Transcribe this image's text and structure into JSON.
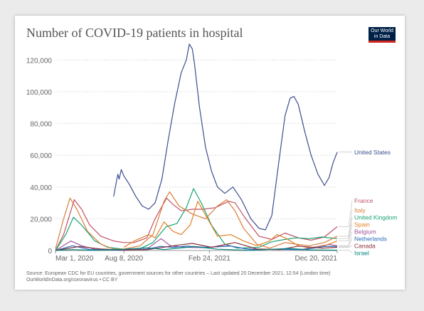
{
  "header": {
    "title": "Number of COVID-19 patients in hospital",
    "logo_line1": "Our World",
    "logo_line2": "in Data"
  },
  "footer": {
    "source": "Source: European CDC for EU countries, government sources for other countries – Last updated 20 December 2021, 12:54 (London time)",
    "credit": "OurWorldInData.org/coronavirus • CC BY"
  },
  "colors": {
    "logo_bg": "#002147",
    "logo_accent": "#ce261e"
  },
  "chart_data": {
    "type": "line",
    "title": "Number of COVID-19 patients in hospital",
    "xlabel": "",
    "ylabel": "",
    "x_axis_type": "date",
    "xlim": [
      "2020-03-01",
      "2021-12-20"
    ],
    "x_ticks": [
      "2020-03-01",
      "2020-08-08",
      "2021-02-24",
      "2021-12-20"
    ],
    "x_tick_labels": [
      "Mar 1, 2020",
      "Aug 8, 2020",
      "Feb 24, 2021",
      "Dec 20, 2021"
    ],
    "ylim": [
      0,
      130000
    ],
    "y_ticks": [
      0,
      20000,
      40000,
      60000,
      80000,
      100000,
      120000
    ],
    "y_tick_labels": [
      "0",
      "20,000",
      "40,000",
      "60,000",
      "80,000",
      "100,000",
      "120,000"
    ],
    "grid": "horizontal dotted",
    "legend": "right, labels at line ends",
    "series": [
      {
        "name": "United States",
        "color": "#3c4e8e",
        "points": [
          [
            "2020-07-15",
            34000
          ],
          [
            "2020-07-22",
            44000
          ],
          [
            "2020-07-25",
            48000
          ],
          [
            "2020-07-28",
            45000
          ],
          [
            "2020-08-02",
            51000
          ],
          [
            "2020-08-08",
            47000
          ],
          [
            "2020-08-20",
            42000
          ],
          [
            "2020-09-05",
            34000
          ],
          [
            "2020-09-20",
            28000
          ],
          [
            "2020-10-05",
            26000
          ],
          [
            "2020-10-20",
            30000
          ],
          [
            "2020-11-05",
            45000
          ],
          [
            "2020-11-20",
            70000
          ],
          [
            "2020-12-05",
            93000
          ],
          [
            "2020-12-20",
            112000
          ],
          [
            "2021-01-01",
            120000
          ],
          [
            "2021-01-08",
            130000
          ],
          [
            "2021-01-15",
            127000
          ],
          [
            "2021-01-20",
            118000
          ],
          [
            "2021-02-01",
            90000
          ],
          [
            "2021-02-15",
            65000
          ],
          [
            "2021-03-01",
            50000
          ],
          [
            "2021-03-15",
            40000
          ],
          [
            "2021-04-01",
            36000
          ],
          [
            "2021-04-20",
            40000
          ],
          [
            "2021-05-10",
            32000
          ],
          [
            "2021-06-01",
            20000
          ],
          [
            "2021-06-20",
            14000
          ],
          [
            "2021-07-05",
            13000
          ],
          [
            "2021-07-20",
            22000
          ],
          [
            "2021-08-05",
            55000
          ],
          [
            "2021-08-20",
            85000
          ],
          [
            "2021-09-01",
            96000
          ],
          [
            "2021-09-10",
            97000
          ],
          [
            "2021-09-20",
            92000
          ],
          [
            "2021-10-05",
            75000
          ],
          [
            "2021-10-20",
            60000
          ],
          [
            "2021-11-05",
            48000
          ],
          [
            "2021-11-20",
            41000
          ],
          [
            "2021-12-01",
            46000
          ],
          [
            "2021-12-10",
            55000
          ],
          [
            "2021-12-20",
            62000
          ]
        ]
      },
      {
        "name": "France",
        "color": "#c15065",
        "points": [
          [
            "2020-03-01",
            0
          ],
          [
            "2020-03-20",
            10000
          ],
          [
            "2020-04-14",
            32000
          ],
          [
            "2020-05-01",
            26000
          ],
          [
            "2020-05-20",
            16000
          ],
          [
            "2020-06-15",
            9000
          ],
          [
            "2020-07-15",
            6000
          ],
          [
            "2020-08-08",
            5000
          ],
          [
            "2020-09-01",
            5000
          ],
          [
            "2020-10-01",
            8000
          ],
          [
            "2020-10-20",
            20000
          ],
          [
            "2020-11-16",
            33000
          ],
          [
            "2020-12-01",
            29000
          ],
          [
            "2020-12-20",
            25000
          ],
          [
            "2021-01-15",
            26000
          ],
          [
            "2021-02-10",
            26000
          ],
          [
            "2021-03-10",
            27000
          ],
          [
            "2021-04-10",
            31000
          ],
          [
            "2021-04-25",
            30000
          ],
          [
            "2021-05-20",
            20000
          ],
          [
            "2021-06-20",
            9000
          ],
          [
            "2021-07-20",
            7000
          ],
          [
            "2021-08-20",
            11000
          ],
          [
            "2021-09-20",
            8000
          ],
          [
            "2021-10-20",
            6500
          ],
          [
            "2021-11-20",
            8500
          ],
          [
            "2021-12-20",
            15000
          ]
        ]
      },
      {
        "name": "United Kingdom",
        "color": "#18a473",
        "points": [
          [
            "2020-03-01",
            0
          ],
          [
            "2020-03-25",
            10000
          ],
          [
            "2020-04-12",
            21000
          ],
          [
            "2020-05-01",
            16000
          ],
          [
            "2020-06-01",
            6000
          ],
          [
            "2020-07-01",
            2000
          ],
          [
            "2020-08-08",
            800
          ],
          [
            "2020-09-15",
            1200
          ],
          [
            "2020-10-15",
            5000
          ],
          [
            "2020-11-15",
            15000
          ],
          [
            "2020-12-10",
            17000
          ],
          [
            "2021-01-01",
            27000
          ],
          [
            "2021-01-18",
            39000
          ],
          [
            "2021-02-05",
            30000
          ],
          [
            "2021-03-01",
            16000
          ],
          [
            "2021-04-01",
            4000
          ],
          [
            "2021-05-01",
            1500
          ],
          [
            "2021-06-20",
            2000
          ],
          [
            "2021-07-20",
            5500
          ],
          [
            "2021-08-20",
            7000
          ],
          [
            "2021-09-15",
            8000
          ],
          [
            "2021-10-15",
            7500
          ],
          [
            "2021-11-15",
            8500
          ],
          [
            "2021-12-20",
            7500
          ]
        ]
      },
      {
        "name": "Italy",
        "color": "#d97d3a",
        "points": [
          [
            "2020-03-01",
            1000
          ],
          [
            "2020-03-20",
            20000
          ],
          [
            "2020-04-04",
            33000
          ],
          [
            "2020-04-20",
            26000
          ],
          [
            "2020-05-15",
            12000
          ],
          [
            "2020-06-15",
            4000
          ],
          [
            "2020-07-15",
            900
          ],
          [
            "2020-08-08",
            900
          ],
          [
            "2020-09-15",
            3000
          ],
          [
            "2020-10-15",
            10000
          ],
          [
            "2020-11-10",
            31000
          ],
          [
            "2020-11-23",
            37000
          ],
          [
            "2020-12-15",
            28000
          ],
          [
            "2021-01-15",
            23000
          ],
          [
            "2021-02-15",
            20000
          ],
          [
            "2021-03-15",
            28000
          ],
          [
            "2021-04-05",
            32000
          ],
          [
            "2021-04-25",
            25000
          ],
          [
            "2021-05-15",
            14000
          ],
          [
            "2021-06-15",
            4000
          ],
          [
            "2021-07-15",
            1500
          ],
          [
            "2021-08-20",
            5000
          ],
          [
            "2021-09-15",
            4000
          ],
          [
            "2021-10-15",
            3000
          ],
          [
            "2021-11-20",
            5000
          ],
          [
            "2021-12-20",
            9000
          ]
        ]
      },
      {
        "name": "Belgium",
        "color": "#a2559c",
        "points": [
          [
            "2020-03-01",
            0
          ],
          [
            "2020-04-06",
            6000
          ],
          [
            "2020-05-01",
            3000
          ],
          [
            "2020-06-01",
            800
          ],
          [
            "2020-08-08",
            400
          ],
          [
            "2020-10-01",
            1000
          ],
          [
            "2020-11-03",
            7500
          ],
          [
            "2020-11-25",
            3000
          ],
          [
            "2021-01-01",
            2000
          ],
          [
            "2021-02-15",
            1800
          ],
          [
            "2021-04-12",
            3000
          ],
          [
            "2021-05-20",
            1000
          ],
          [
            "2021-08-01",
            600
          ],
          [
            "2021-10-01",
            800
          ],
          [
            "2021-12-01",
            3800
          ],
          [
            "2021-12-20",
            3000
          ]
        ]
      },
      {
        "name": "Spain",
        "color": "#e18029",
        "points": [
          [
            "2020-08-08",
            2000
          ],
          [
            "2020-09-01",
            6000
          ],
          [
            "2020-10-05",
            10000
          ],
          [
            "2020-10-20",
            8000
          ],
          [
            "2020-11-10",
            18000
          ],
          [
            "2020-12-01",
            12000
          ],
          [
            "2020-12-20",
            10000
          ],
          [
            "2021-01-10",
            16000
          ],
          [
            "2021-01-28",
            31000
          ],
          [
            "2021-02-20",
            20000
          ],
          [
            "2021-03-15",
            9000
          ],
          [
            "2021-04-15",
            10000
          ],
          [
            "2021-05-15",
            6000
          ],
          [
            "2021-06-15",
            3000
          ],
          [
            "2021-07-15",
            6000
          ],
          [
            "2021-08-01",
            10000
          ],
          [
            "2021-08-20",
            8000
          ],
          [
            "2021-09-20",
            3000
          ],
          [
            "2021-10-20",
            1500
          ],
          [
            "2021-11-20",
            3000
          ],
          [
            "2021-12-20",
            6000
          ]
        ]
      },
      {
        "name": "Netherlands",
        "color": "#286bbb",
        "points": [
          [
            "2020-03-01",
            0
          ],
          [
            "2020-04-10",
            3000
          ],
          [
            "2020-05-20",
            600
          ],
          [
            "2020-08-08",
            200
          ],
          [
            "2020-10-01",
            800
          ],
          [
            "2020-11-01",
            2600
          ],
          [
            "2020-12-01",
            2000
          ],
          [
            "2021-01-01",
            2800
          ],
          [
            "2021-02-15",
            2000
          ],
          [
            "2021-04-15",
            2800
          ],
          [
            "2021-06-01",
            600
          ],
          [
            "2021-08-01",
            700
          ],
          [
            "2021-10-01",
            500
          ],
          [
            "2021-11-20",
            2500
          ],
          [
            "2021-12-20",
            2600
          ]
        ]
      },
      {
        "name": "Canada",
        "color": "#883039",
        "points": [
          [
            "2020-03-01",
            0
          ],
          [
            "2020-04-25",
            2500
          ],
          [
            "2020-06-15",
            1000
          ],
          [
            "2020-08-08",
            300
          ],
          [
            "2020-10-01",
            500
          ],
          [
            "2020-12-15",
            3500
          ],
          [
            "2021-01-15",
            4500
          ],
          [
            "2021-03-01",
            2000
          ],
          [
            "2021-04-25",
            5000
          ],
          [
            "2021-06-15",
            1000
          ],
          [
            "2021-08-08",
            600
          ],
          [
            "2021-09-20",
            2800
          ],
          [
            "2021-11-15",
            1500
          ],
          [
            "2021-12-20",
            2000
          ]
        ]
      },
      {
        "name": "Israel",
        "color": "#00847e",
        "points": [
          [
            "2020-03-01",
            0
          ],
          [
            "2020-04-10",
            600
          ],
          [
            "2020-06-01",
            100
          ],
          [
            "2020-08-08",
            800
          ],
          [
            "2020-10-01",
            1700
          ],
          [
            "2020-11-10",
            600
          ],
          [
            "2021-01-20",
            2500
          ],
          [
            "2021-03-15",
            800
          ],
          [
            "2021-06-01",
            100
          ],
          [
            "2021-08-30",
            1300
          ],
          [
            "2021-10-15",
            400
          ],
          [
            "2021-12-20",
            200
          ]
        ]
      }
    ]
  }
}
